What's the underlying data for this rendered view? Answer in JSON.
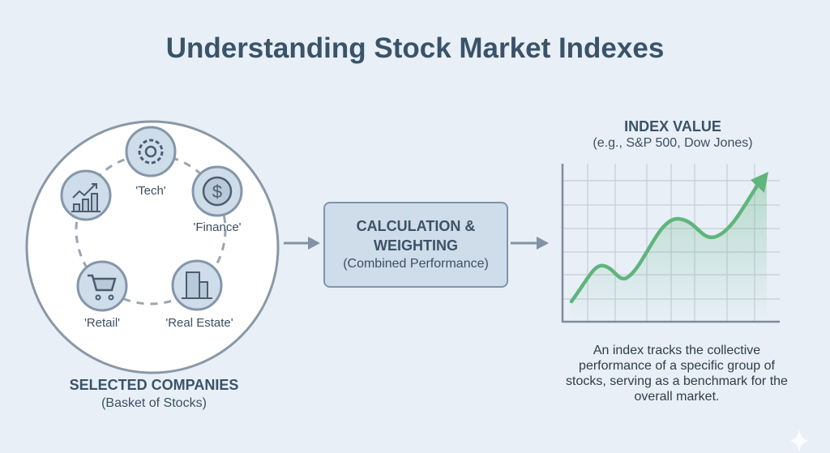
{
  "title": "Understanding Stock Market Indexes",
  "basket": {
    "heading": "SELECTED COMPANIES",
    "subheading": "(Basket of Stocks)",
    "sectors": [
      {
        "label": "'Tech'",
        "icon": "gear-icon"
      },
      {
        "label": "'Finance'",
        "icon": "dollar-icon"
      },
      {
        "label": "'Real Estate'",
        "icon": "building-icon"
      },
      {
        "label": "'Retail'",
        "icon": "shopping-cart-icon"
      },
      {
        "label": "",
        "icon": "growth-chart-icon"
      }
    ]
  },
  "calculation": {
    "heading_line1": "CALCULATION &",
    "heading_line2": "WEIGHTING",
    "subheading": "(Combined Performance)"
  },
  "index": {
    "heading": "INDEX VALUE",
    "subheading": "(e.g., S&P 500, Dow Jones)",
    "description": "An index tracks the collective performance of a specific group of stocks, serving as a benchmark for the overall market.",
    "line_color": "#5fb57c"
  },
  "colors": {
    "background": "#e8eff7",
    "accent": "#5fb57c",
    "box": "#cfdcea"
  }
}
